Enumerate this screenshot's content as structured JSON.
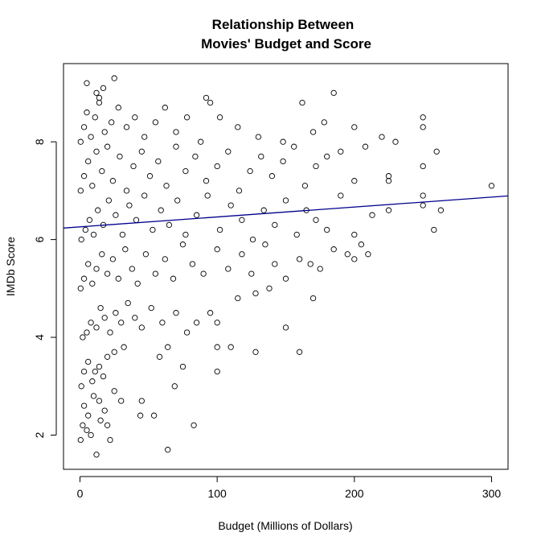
{
  "chart_data": {
    "type": "scatter",
    "title_line1": "Relationship Between",
    "title_line2": "Movies' Budget and Score",
    "xlabel": "Budget (Millions of Dollars)",
    "ylabel": "IMDb Score",
    "xlim": [
      -12,
      312
    ],
    "ylim": [
      1.3,
      9.6
    ],
    "x_ticks": [
      0,
      100,
      200,
      300
    ],
    "y_ticks": [
      2,
      4,
      6,
      8
    ],
    "grid": false,
    "point_color": "#000000",
    "regression_line": {
      "color": "#00008b",
      "intercept": 6.26,
      "slope": 0.00203
    },
    "points": [
      [
        0.5,
        1.9
      ],
      [
        2,
        2.2
      ],
      [
        5,
        2.1
      ],
      [
        8,
        2.0
      ],
      [
        12,
        1.6
      ],
      [
        15,
        2.3
      ],
      [
        20,
        2.2
      ],
      [
        22,
        1.9
      ],
      [
        3,
        2.6
      ],
      [
        6,
        2.4
      ],
      [
        10,
        2.8
      ],
      [
        14,
        2.7
      ],
      [
        18,
        2.5
      ],
      [
        25,
        2.9
      ],
      [
        30,
        2.7
      ],
      [
        44,
        2.4
      ],
      [
        54,
        2.4
      ],
      [
        64,
        1.7
      ],
      [
        83,
        2.2
      ],
      [
        45,
        2.7
      ],
      [
        1,
        3.0
      ],
      [
        3,
        3.3
      ],
      [
        6,
        3.5
      ],
      [
        9,
        3.1
      ],
      [
        11,
        3.3
      ],
      [
        14,
        3.4
      ],
      [
        17,
        3.2
      ],
      [
        20,
        3.6
      ],
      [
        25,
        3.7
      ],
      [
        32,
        3.8
      ],
      [
        58,
        3.6
      ],
      [
        64,
        3.8
      ],
      [
        69,
        3.0
      ],
      [
        75,
        3.4
      ],
      [
        100,
        3.3
      ],
      [
        100,
        3.8
      ],
      [
        110,
        3.8
      ],
      [
        128,
        3.7
      ],
      [
        160,
        3.7
      ],
      [
        2,
        4.0
      ],
      [
        5,
        4.1
      ],
      [
        8,
        4.3
      ],
      [
        12,
        4.2
      ],
      [
        15,
        4.6
      ],
      [
        18,
        4.4
      ],
      [
        22,
        4.1
      ],
      [
        26,
        4.5
      ],
      [
        30,
        4.3
      ],
      [
        35,
        4.7
      ],
      [
        40,
        4.4
      ],
      [
        45,
        4.2
      ],
      [
        52,
        4.6
      ],
      [
        60,
        4.3
      ],
      [
        70,
        4.5
      ],
      [
        78,
        4.1
      ],
      [
        85,
        4.3
      ],
      [
        95,
        4.5
      ],
      [
        100,
        4.3
      ],
      [
        115,
        4.8
      ],
      [
        128,
        4.9
      ],
      [
        138,
        5.0
      ],
      [
        150,
        4.2
      ],
      [
        170,
        4.8
      ],
      [
        0.5,
        5.0
      ],
      [
        3,
        5.2
      ],
      [
        6,
        5.5
      ],
      [
        9,
        5.1
      ],
      [
        12,
        5.4
      ],
      [
        16,
        5.7
      ],
      [
        20,
        5.3
      ],
      [
        24,
        5.6
      ],
      [
        28,
        5.2
      ],
      [
        33,
        5.8
      ],
      [
        38,
        5.4
      ],
      [
        42,
        5.1
      ],
      [
        48,
        5.7
      ],
      [
        55,
        5.3
      ],
      [
        62,
        5.6
      ],
      [
        68,
        5.2
      ],
      [
        75,
        5.9
      ],
      [
        82,
        5.5
      ],
      [
        90,
        5.3
      ],
      [
        100,
        5.8
      ],
      [
        108,
        5.4
      ],
      [
        118,
        5.7
      ],
      [
        125,
        5.3
      ],
      [
        135,
        5.9
      ],
      [
        142,
        5.5
      ],
      [
        150,
        5.2
      ],
      [
        160,
        5.6
      ],
      [
        168,
        5.5
      ],
      [
        175,
        5.4
      ],
      [
        185,
        5.8
      ],
      [
        195,
        5.7
      ],
      [
        200,
        5.6
      ],
      [
        210,
        5.7
      ],
      [
        205,
        5.9
      ],
      [
        1,
        6.0
      ],
      [
        4,
        6.2
      ],
      [
        7,
        6.4
      ],
      [
        10,
        6.1
      ],
      [
        13,
        6.6
      ],
      [
        17,
        6.3
      ],
      [
        21,
        6.8
      ],
      [
        26,
        6.5
      ],
      [
        31,
        6.1
      ],
      [
        36,
        6.7
      ],
      [
        41,
        6.4
      ],
      [
        47,
        6.9
      ],
      [
        53,
        6.2
      ],
      [
        59,
        6.6
      ],
      [
        65,
        6.3
      ],
      [
        71,
        6.8
      ],
      [
        77,
        6.1
      ],
      [
        85,
        6.5
      ],
      [
        93,
        6.9
      ],
      [
        102,
        6.2
      ],
      [
        110,
        6.7
      ],
      [
        118,
        6.4
      ],
      [
        126,
        6.0
      ],
      [
        134,
        6.6
      ],
      [
        142,
        6.3
      ],
      [
        150,
        6.8
      ],
      [
        158,
        6.1
      ],
      [
        165,
        6.6
      ],
      [
        172,
        6.4
      ],
      [
        180,
        6.2
      ],
      [
        190,
        6.9
      ],
      [
        200,
        6.1
      ],
      [
        213,
        6.5
      ],
      [
        225,
        6.6
      ],
      [
        250,
        6.7
      ],
      [
        250,
        6.9
      ],
      [
        258,
        6.2
      ],
      [
        263,
        6.6
      ],
      [
        0.5,
        7.0
      ],
      [
        3,
        7.3
      ],
      [
        6,
        7.6
      ],
      [
        9,
        7.1
      ],
      [
        12,
        7.8
      ],
      [
        16,
        7.4
      ],
      [
        20,
        7.9
      ],
      [
        24,
        7.2
      ],
      [
        29,
        7.7
      ],
      [
        34,
        7.0
      ],
      [
        39,
        7.5
      ],
      [
        45,
        7.8
      ],
      [
        51,
        7.3
      ],
      [
        57,
        7.6
      ],
      [
        63,
        7.1
      ],
      [
        70,
        7.9
      ],
      [
        77,
        7.4
      ],
      [
        84,
        7.7
      ],
      [
        92,
        7.2
      ],
      [
        100,
        7.5
      ],
      [
        108,
        7.8
      ],
      [
        116,
        7.0
      ],
      [
        124,
        7.4
      ],
      [
        132,
        7.7
      ],
      [
        140,
        7.3
      ],
      [
        148,
        7.6
      ],
      [
        156,
        7.9
      ],
      [
        164,
        7.1
      ],
      [
        172,
        7.5
      ],
      [
        180,
        7.7
      ],
      [
        190,
        7.8
      ],
      [
        200,
        7.2
      ],
      [
        208,
        7.9
      ],
      [
        225,
        7.2
      ],
      [
        225,
        7.3
      ],
      [
        250,
        7.5
      ],
      [
        300,
        7.1
      ],
      [
        0.5,
        8.0
      ],
      [
        3,
        8.3
      ],
      [
        5,
        8.6
      ],
      [
        8,
        8.1
      ],
      [
        11,
        8.5
      ],
      [
        14,
        8.8
      ],
      [
        18,
        8.2
      ],
      [
        23,
        8.4
      ],
      [
        28,
        8.7
      ],
      [
        34,
        8.3
      ],
      [
        40,
        8.5
      ],
      [
        47,
        8.1
      ],
      [
        55,
        8.4
      ],
      [
        62,
        8.7
      ],
      [
        70,
        8.2
      ],
      [
        78,
        8.5
      ],
      [
        88,
        8.0
      ],
      [
        95,
        8.8
      ],
      [
        102,
        8.5
      ],
      [
        115,
        8.3
      ],
      [
        130,
        8.1
      ],
      [
        148,
        8.0
      ],
      [
        162,
        8.8
      ],
      [
        170,
        8.2
      ],
      [
        178,
        8.4
      ],
      [
        200,
        8.3
      ],
      [
        220,
        8.1
      ],
      [
        230,
        8.0
      ],
      [
        250,
        8.3
      ],
      [
        250,
        8.5
      ],
      [
        260,
        7.8
      ],
      [
        5,
        9.2
      ],
      [
        12,
        9.0
      ],
      [
        17,
        9.1
      ],
      [
        25,
        9.3
      ],
      [
        14,
        8.9
      ],
      [
        185,
        9.0
      ],
      [
        92,
        8.9
      ]
    ]
  }
}
